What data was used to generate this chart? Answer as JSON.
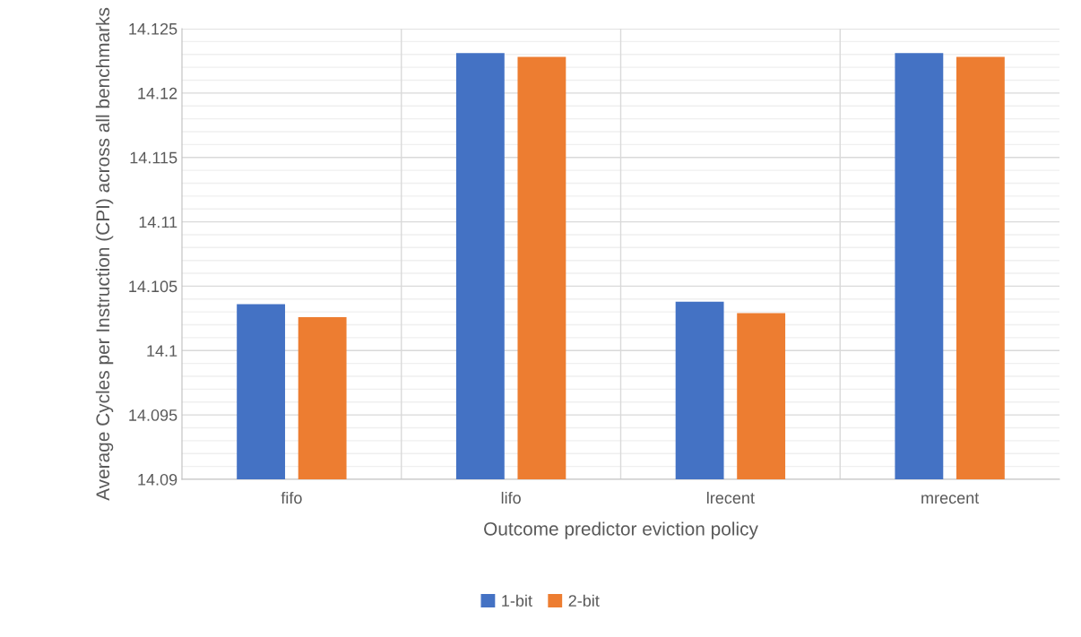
{
  "chart_data": {
    "type": "bar",
    "xlabel": "Outcome predictor eviction policy",
    "ylabel": "Average Cycles per Instruction (CPI) across all benchmarks",
    "categories": [
      "fifo",
      "lifo",
      "lrecent",
      "mrecent"
    ],
    "series": [
      {
        "name": "1-bit",
        "color": "#4472c4",
        "values": [
          14.1036,
          14.1231,
          14.1038,
          14.1231
        ]
      },
      {
        "name": "2-bit",
        "color": "#ed7d31",
        "values": [
          14.1026,
          14.1228,
          14.1029,
          14.1228
        ]
      }
    ],
    "ylim": [
      14.09,
      14.125
    ],
    "yticks": [
      "14.09",
      {
        "value": 14.091,
        "label": null
      },
      {
        "value": 14.092,
        "label": null
      },
      {
        "value": 14.093,
        "label": null
      },
      {
        "value": 14.094,
        "label": null
      },
      {
        "value": 14.095,
        "label": "14.095"
      },
      {
        "value": 14.096,
        "label": null
      },
      {
        "value": 14.097,
        "label": null
      },
      {
        "value": 14.098,
        "label": null
      },
      {
        "value": 14.099,
        "label": null
      },
      {
        "value": 14.1,
        "label": "14.1"
      },
      {
        "value": 14.101,
        "label": null
      },
      {
        "value": 14.102,
        "label": null
      },
      {
        "value": 14.103,
        "label": null
      },
      {
        "value": 14.104,
        "label": null
      },
      {
        "value": 14.105,
        "label": "14.105"
      },
      {
        "value": 14.106,
        "label": null
      },
      {
        "value": 14.107,
        "label": null
      },
      {
        "value": 14.108,
        "label": null
      },
      {
        "value": 14.109,
        "label": null
      },
      {
        "value": 14.11,
        "label": "14.11"
      },
      {
        "value": 14.111,
        "label": null
      },
      {
        "value": 14.112,
        "label": null
      },
      {
        "value": 14.113,
        "label": null
      },
      {
        "value": 14.114,
        "label": null
      },
      {
        "value": 14.115,
        "label": "14.115"
      },
      {
        "value": 14.116,
        "label": null
      },
      {
        "value": 14.117,
        "label": null
      },
      {
        "value": 14.118,
        "label": null
      },
      {
        "value": 14.119,
        "label": null
      },
      {
        "value": 14.12,
        "label": "14.12"
      },
      {
        "value": 14.121,
        "label": null
      },
      {
        "value": 14.122,
        "label": null
      },
      {
        "value": 14.123,
        "label": null
      },
      {
        "value": 14.124,
        "label": null
      },
      {
        "value": 14.125,
        "label": "14.125"
      }
    ],
    "grid": true,
    "legend": "bottom"
  }
}
